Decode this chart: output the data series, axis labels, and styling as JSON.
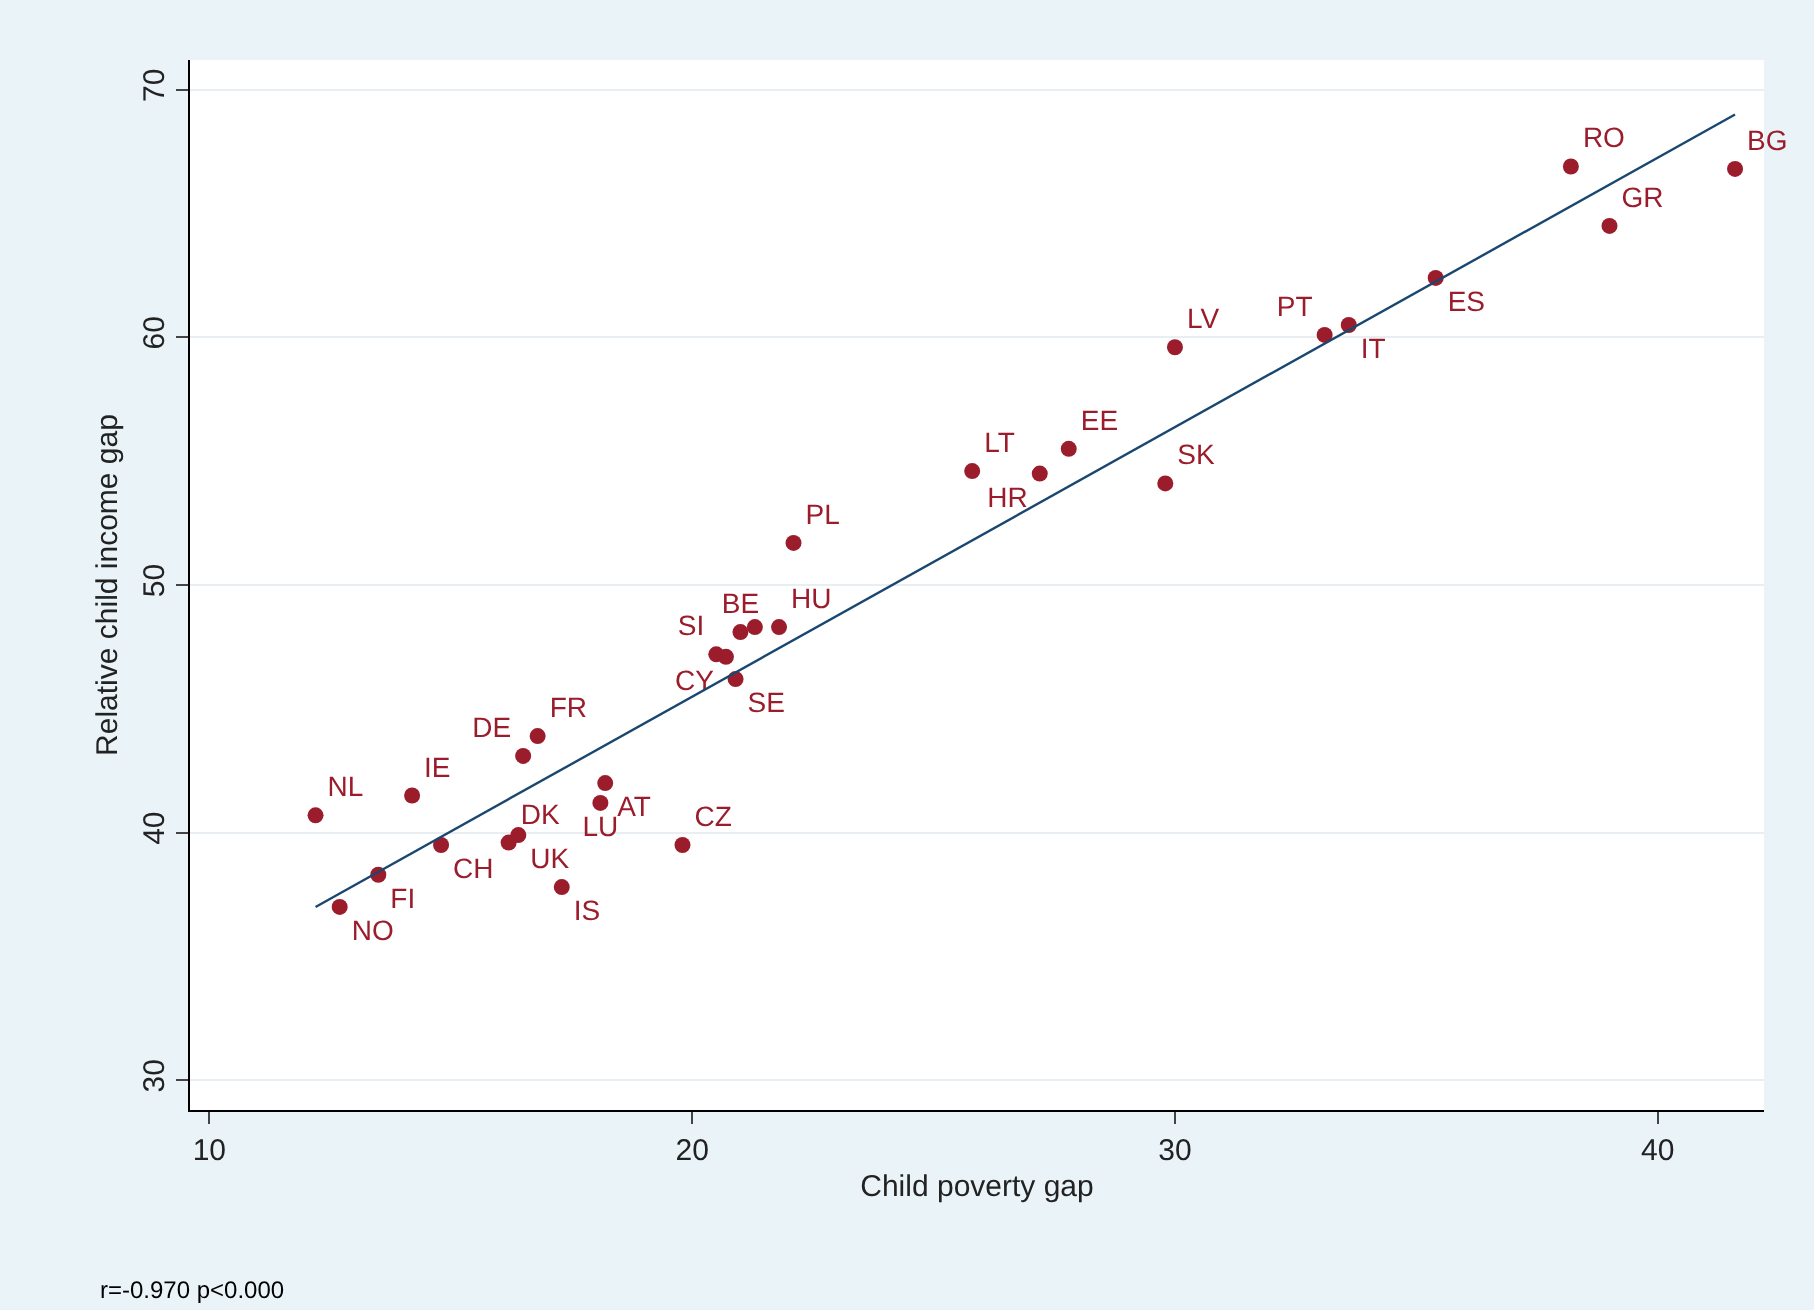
{
  "chart_data": {
    "type": "scatter",
    "xlabel": "Child poverty gap",
    "ylabel": "Relative child income gap",
    "xlim": [
      9.6,
      42.2
    ],
    "ylim": [
      28.8,
      71.2
    ],
    "xticks": [
      10,
      20,
      30,
      40
    ],
    "yticks": [
      30,
      40,
      50,
      60,
      70
    ],
    "grid": "y",
    "annotations": [
      "r=-0.970 p<0.000"
    ],
    "series": [
      {
        "marker": "circle",
        "color": "#9b1d2c",
        "x": [
          12.2,
          12.7,
          13.5,
          14.2,
          14.8,
          16.5,
          16.8,
          16.4,
          16.2,
          17.3,
          18.2,
          18.1,
          19.8,
          20.9,
          20.5,
          20.7,
          21.0,
          21.3,
          21.8,
          22.1,
          25.8,
          27.2,
          27.8,
          29.8,
          30.0,
          33.1,
          33.6,
          35.4,
          38.2,
          39.0,
          41.6
        ],
        "values": [
          40.7,
          37.0,
          38.3,
          41.5,
          39.5,
          43.1,
          43.9,
          39.9,
          39.6,
          37.8,
          42.0,
          41.2,
          39.5,
          46.2,
          47.2,
          47.1,
          48.1,
          48.3,
          48.3,
          51.7,
          54.6,
          54.5,
          55.5,
          54.1,
          59.6,
          60.1,
          60.5,
          62.4,
          66.9,
          64.5,
          66.8
        ],
        "value_labels": [
          "NL",
          "NO",
          "FI",
          "IE",
          "CH",
          "DE",
          "FR",
          "UK",
          "DK",
          "IS",
          "AT",
          "LU",
          "CZ",
          "SE",
          "SI",
          "CY",
          "BE",
          null,
          "HU",
          "PL",
          "LT",
          "HR",
          "EE",
          "SK",
          "LV",
          "PT",
          "IT",
          "ES",
          "RO",
          "GR",
          "BG"
        ]
      },
      {
        "type": "line",
        "color": "#1a476f",
        "x": [
          12.2,
          41.6
        ],
        "values": [
          37.0,
          69.0
        ]
      }
    ]
  }
}
